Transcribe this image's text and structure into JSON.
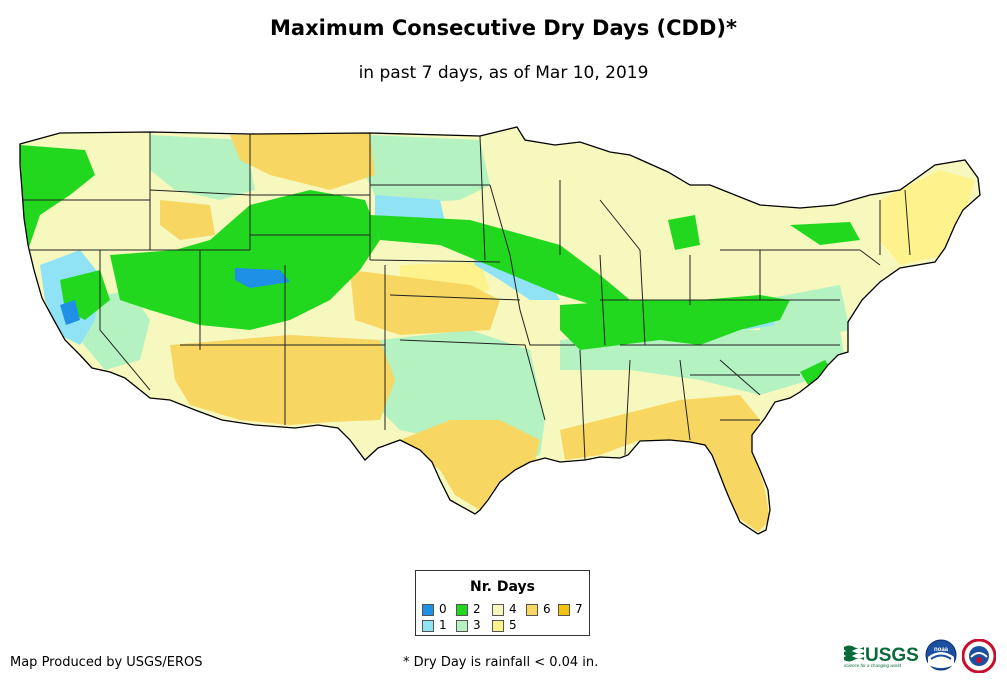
{
  "map": {
    "title": "Maximum Consecutive Dry Days (CDD)*",
    "subtitle": "in past 7 days, as of Mar 10, 2019",
    "region": "Contiguous United States",
    "legend": {
      "title": "Nr. Days",
      "items": [
        {
          "label": "0",
          "color": "#1e90e6"
        },
        {
          "label": "1",
          "color": "#8fe3f5"
        },
        {
          "label": "2",
          "color": "#22d81e"
        },
        {
          "label": "3",
          "color": "#b4f2c2"
        },
        {
          "label": "4",
          "color": "#f6f8be"
        },
        {
          "label": "5",
          "color": "#fdf28c"
        },
        {
          "label": "6",
          "color": "#f8d662"
        },
        {
          "label": "7",
          "color": "#f4c20a"
        }
      ]
    },
    "colors": {
      "land_outline": "#000000",
      "state_lines": "#222222"
    }
  },
  "footer": {
    "credit": "Map Produced by USGS/EROS",
    "footnote": "* Dry Day is rainfall < 0.04 in.",
    "logos": {
      "usgs_text": "USGS",
      "usgs_tagline": "science for a changing world",
      "noaa_text": "noaa"
    }
  }
}
